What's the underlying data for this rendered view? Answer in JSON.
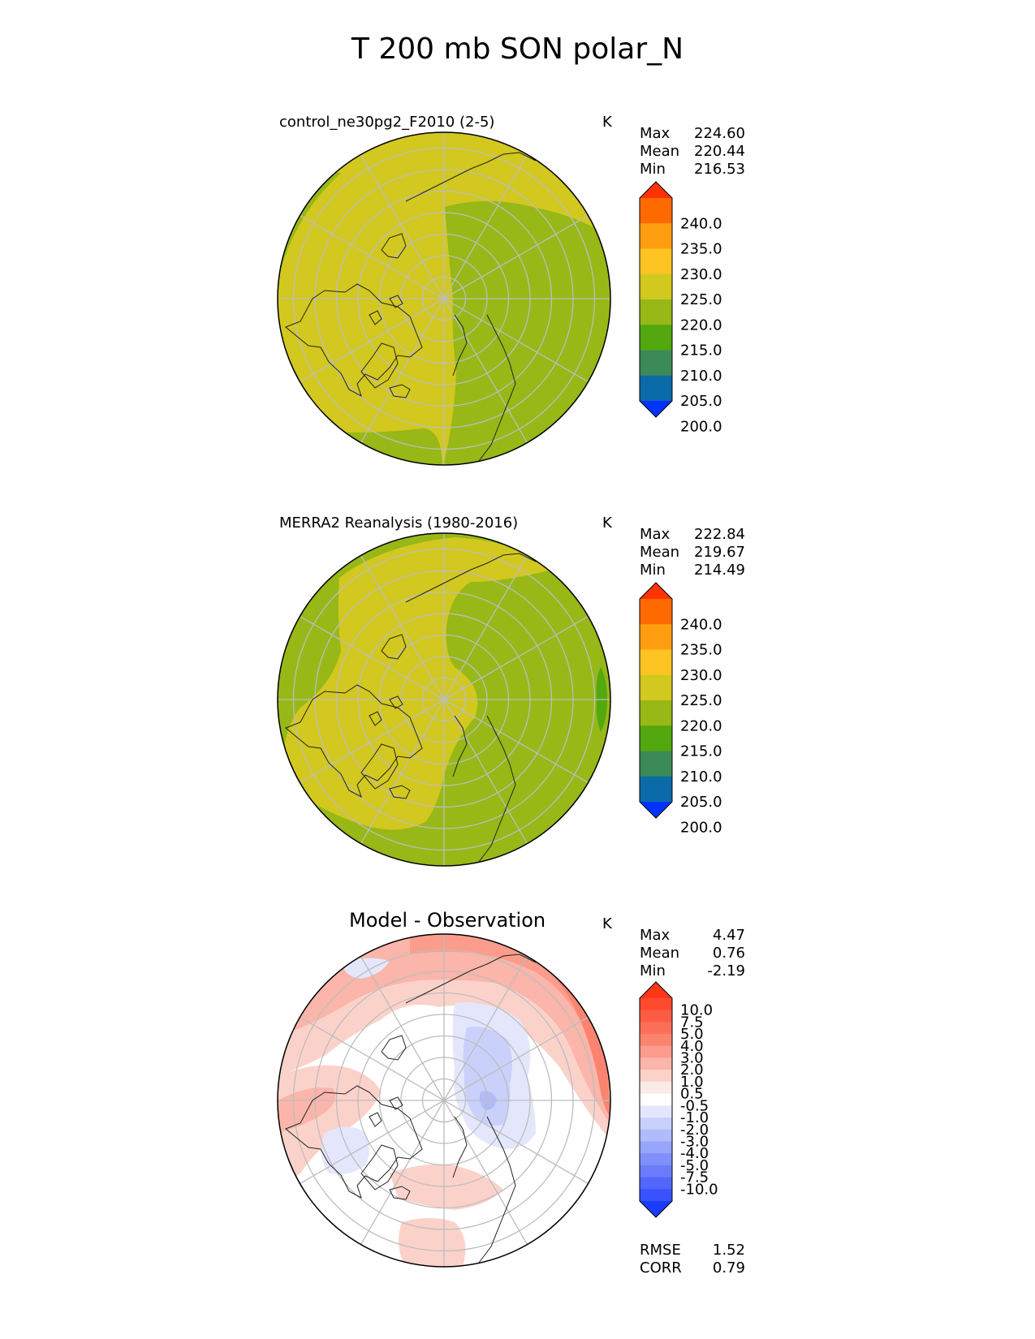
{
  "figure": {
    "title": "T 200 mb SON polar_N"
  },
  "panels": [
    {
      "title": "control_ne30pg2_F2010 (2-5)",
      "units": "K",
      "stats": [
        {
          "label": "Max",
          "value": "224.60"
        },
        {
          "label": "Mean",
          "value": "220.44"
        },
        {
          "label": "Min",
          "value": "216.53"
        }
      ],
      "colorbar": {
        "labels": [
          "240.0",
          "235.0",
          "230.0",
          "225.0",
          "220.0",
          "215.0",
          "210.0",
          "205.0",
          "200.0"
        ],
        "colors": [
          "#ff3300",
          "#ff6a00",
          "#ff9d10",
          "#fdc423",
          "#d2c81f",
          "#97b817",
          "#52a80e",
          "#3b8a57",
          "#0a6ba8",
          "#0033ff"
        ]
      }
    },
    {
      "title": "MERRA2 Reanalysis (1980-2016)",
      "units": "K",
      "stats": [
        {
          "label": "Max",
          "value": "222.84"
        },
        {
          "label": "Mean",
          "value": "219.67"
        },
        {
          "label": "Min",
          "value": "214.49"
        }
      ],
      "colorbar": {
        "labels": [
          "240.0",
          "235.0",
          "230.0",
          "225.0",
          "220.0",
          "215.0",
          "210.0",
          "205.0",
          "200.0"
        ],
        "colors": [
          "#ff3300",
          "#ff6a00",
          "#ff9d10",
          "#fdc423",
          "#d2c81f",
          "#97b817",
          "#52a80e",
          "#3b8a57",
          "#0a6ba8",
          "#0033ff"
        ]
      }
    },
    {
      "title": "Model - Observation",
      "units": "K",
      "stats": [
        {
          "label": "Max",
          "value": "4.47"
        },
        {
          "label": "Mean",
          "value": "0.76"
        },
        {
          "label": "Min",
          "value": "-2.19"
        }
      ],
      "bottom_stats": [
        {
          "label": "RMSE",
          "value": "1.52"
        },
        {
          "label": "CORR",
          "value": "0.79"
        }
      ],
      "colorbar": {
        "labels": [
          "10.0",
          "7.5",
          "5.0",
          "4.0",
          "3.0",
          "2.0",
          "1.0",
          "0.5",
          "-0.5",
          "-1.0",
          "-2.0",
          "-3.0",
          "-4.0",
          "-5.0",
          "-7.5",
          "-10.0"
        ],
        "colors": [
          "#ff3719",
          "#ff4a30",
          "#fb5c43",
          "#fb6f59",
          "#fb8471",
          "#fb9c8c",
          "#fbb5aa",
          "#fbd2ca",
          "#fbebe6",
          "#ffffff",
          "#e4e7fb",
          "#c9d1fb",
          "#b0bbfb",
          "#97a5fb",
          "#7f90fb",
          "#6b7cfb",
          "#5266fb",
          "#3852ff",
          "#1a3cff"
        ]
      }
    }
  ],
  "chart_data": [
    {
      "type": "heatmap",
      "title": "control_ne30pg2_F2010 (2-5)",
      "projection": "north polar stereographic",
      "field": "T 200 mb SON",
      "units": "K",
      "max": 224.6,
      "mean": 220.44,
      "min": 216.53,
      "contour_levels": [
        200,
        205,
        210,
        215,
        220,
        225,
        230,
        235,
        240
      ],
      "colors": {
        "215-220": "#97b817",
        "220-225": "#d2c81f"
      }
    },
    {
      "type": "heatmap",
      "title": "MERRA2 Reanalysis (1980-2016)",
      "projection": "north polar stereographic",
      "field": "T 200 mb SON",
      "units": "K",
      "max": 222.84,
      "mean": 219.67,
      "min": 214.49,
      "contour_levels": [
        200,
        205,
        210,
        215,
        220,
        225,
        230,
        235,
        240
      ],
      "colors": {
        "210-215": "#52a80e",
        "215-220": "#97b817",
        "220-225": "#d2c81f"
      }
    },
    {
      "type": "heatmap",
      "title": "Model - Observation",
      "projection": "north polar stereographic",
      "field": "T 200 mb SON difference",
      "units": "K",
      "max": 4.47,
      "mean": 0.76,
      "min": -2.19,
      "rmse": 1.52,
      "corr": 0.79,
      "contour_levels": [
        -10.0,
        -7.5,
        -5.0,
        -4.0,
        -3.0,
        -2.0,
        -1.0,
        -0.5,
        0.5,
        1.0,
        2.0,
        3.0,
        4.0,
        5.0,
        7.5,
        10.0
      ]
    }
  ]
}
